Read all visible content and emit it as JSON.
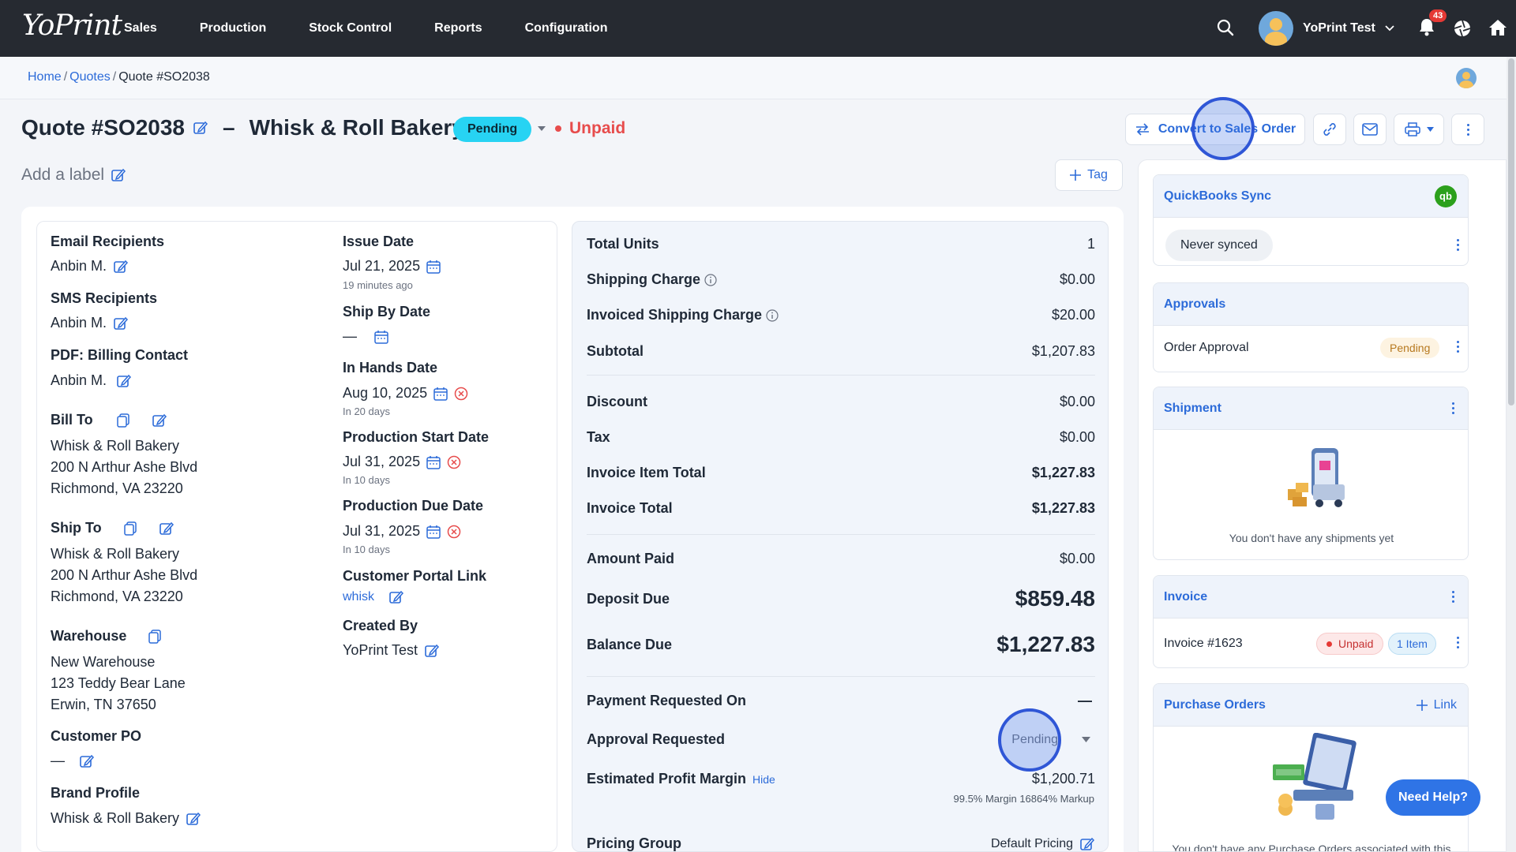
{
  "app": {
    "logo": "YoPrint"
  },
  "nav": {
    "items": [
      "Sales",
      "Production",
      "Stock Control",
      "Reports",
      "Configuration"
    ],
    "user_name": "YoPrint Test",
    "notification_count": "43"
  },
  "breadcrumb": {
    "home": "Home",
    "sep": "/",
    "quotes": "Quotes",
    "current": "Quote #SO2038"
  },
  "header": {
    "title": "Quote #SO2038",
    "dash": "–",
    "customer": "Whisk & Roll Bakery",
    "status": "Pending",
    "payment_status": "Unpaid",
    "add_label": "Add a label",
    "convert_label": "Convert to Sales Order",
    "tag_label": "Tag"
  },
  "details": {
    "email_recipients_label": "Email Recipients",
    "email_recipients": "Anbin M.",
    "sms_recipients_label": "SMS Recipients",
    "sms_recipients": "Anbin M.",
    "pdf_billing_label": "PDF: Billing Contact",
    "pdf_billing": "Anbin M.",
    "bill_to_label": "Bill To",
    "bill_to": [
      "Whisk & Roll Bakery",
      "200 N Arthur Ashe Blvd",
      "Richmond, VA 23220"
    ],
    "ship_to_label": "Ship To",
    "ship_to": [
      "Whisk & Roll Bakery",
      "200 N Arthur Ashe Blvd",
      "Richmond, VA 23220"
    ],
    "warehouse_label": "Warehouse",
    "warehouse": [
      "New Warehouse",
      "123 Teddy Bear Lane",
      "Erwin, TN 37650"
    ],
    "customer_po_label": "Customer PO",
    "customer_po": "—",
    "brand_profile_label": "Brand Profile",
    "brand_profile": "Whisk & Roll Bakery",
    "issue_date_label": "Issue Date",
    "issue_date": "Jul 21, 2025",
    "issue_date_sub": "19 minutes ago",
    "ship_by_label": "Ship By Date",
    "ship_by": "—",
    "in_hands_label": "In Hands Date",
    "in_hands": "Aug 10, 2025",
    "in_hands_sub": "In 20 days",
    "prod_start_label": "Production Start Date",
    "prod_start": "Jul 31, 2025",
    "prod_start_sub": "In 10 days",
    "prod_due_label": "Production Due Date",
    "prod_due": "Jul 31, 2025",
    "prod_due_sub": "In 10 days",
    "portal_label": "Customer Portal Link",
    "portal": "whisk",
    "created_by_label": "Created By",
    "created_by": "YoPrint Test"
  },
  "totals": {
    "total_units_label": "Total Units",
    "total_units": "1",
    "shipping_label": "Shipping Charge",
    "shipping": "$0.00",
    "inv_shipping_label": "Invoiced Shipping Charge",
    "inv_shipping": "$20.00",
    "subtotal_label": "Subtotal",
    "subtotal": "$1,207.83",
    "discount_label": "Discount",
    "discount": "$0.00",
    "tax_label": "Tax",
    "tax": "$0.00",
    "invoice_item_total_label": "Invoice Item Total",
    "invoice_item_total": "$1,227.83",
    "invoice_total_label": "Invoice Total",
    "invoice_total": "$1,227.83",
    "amount_paid_label": "Amount Paid",
    "amount_paid": "$0.00",
    "deposit_due_label": "Deposit Due",
    "deposit_due": "$859.48",
    "balance_due_label": "Balance Due",
    "balance_due": "$1,227.83",
    "payment_requested_label": "Payment Requested On",
    "payment_requested": "—",
    "approval_requested_label": "Approval Requested",
    "approval_requested": "Pending",
    "profit_margin_label": "Estimated Profit Margin",
    "hide_label": "Hide",
    "profit_margin": "$1,200.71",
    "profit_margin_sub": "99.5% Margin 16864% Markup",
    "pricing_group_label": "Pricing Group",
    "pricing_group": "Default Pricing"
  },
  "sidebar": {
    "qb_title": "QuickBooks Sync",
    "qb_logo": "qb",
    "qb_status": "Never synced",
    "approvals_title": "Approvals",
    "order_approval": "Order Approval",
    "order_approval_status": "Pending",
    "shipment_title": "Shipment",
    "shipment_empty": "You don't have any shipments yet",
    "invoice_title": "Invoice",
    "invoice_number": "Invoice #1623",
    "invoice_status": "Unpaid",
    "invoice_items": "1 Item",
    "po_title": "Purchase Orders",
    "po_link": "Link",
    "po_empty": "You don't have any Purchase Orders associated with this"
  },
  "help": {
    "label": "Need Help?"
  }
}
